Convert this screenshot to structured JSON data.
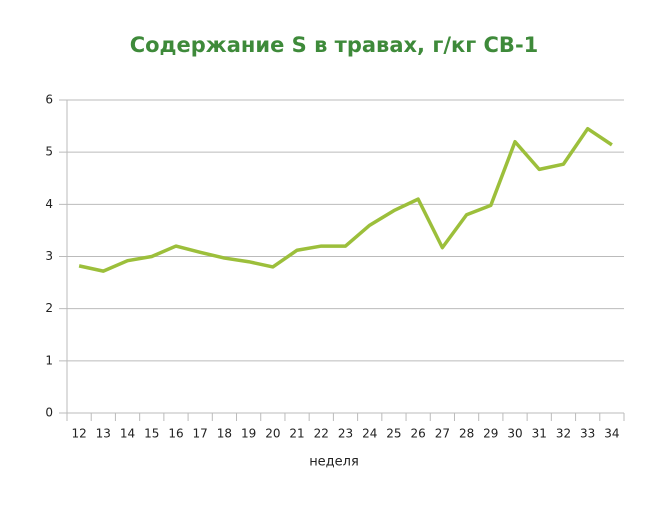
{
  "chart_data": {
    "type": "line",
    "title": "Содержание S в травах, г/кг СВ-1",
    "x_label": "неделя",
    "categories": [
      "12",
      "13",
      "14",
      "15",
      "16",
      "17",
      "18",
      "19",
      "20",
      "21",
      "22",
      "23",
      "24",
      "25",
      "26",
      "27",
      "28",
      "29",
      "30",
      "31",
      "32",
      "33",
      "34"
    ],
    "series": [
      {
        "name": "S",
        "color": "#9cbf3b",
        "values": [
          2.82,
          2.72,
          2.92,
          3.0,
          3.2,
          3.08,
          2.97,
          2.9,
          2.8,
          3.12,
          3.2,
          3.2,
          3.6,
          3.88,
          4.1,
          3.17,
          3.8,
          3.98,
          5.2,
          4.67,
          4.77,
          5.45,
          5.14
        ]
      }
    ],
    "ylim": [
      0,
      6
    ],
    "yticks": [
      0,
      1,
      2,
      3,
      4,
      5,
      6
    ],
    "grid": true,
    "title_color": "#3e8a3a"
  }
}
